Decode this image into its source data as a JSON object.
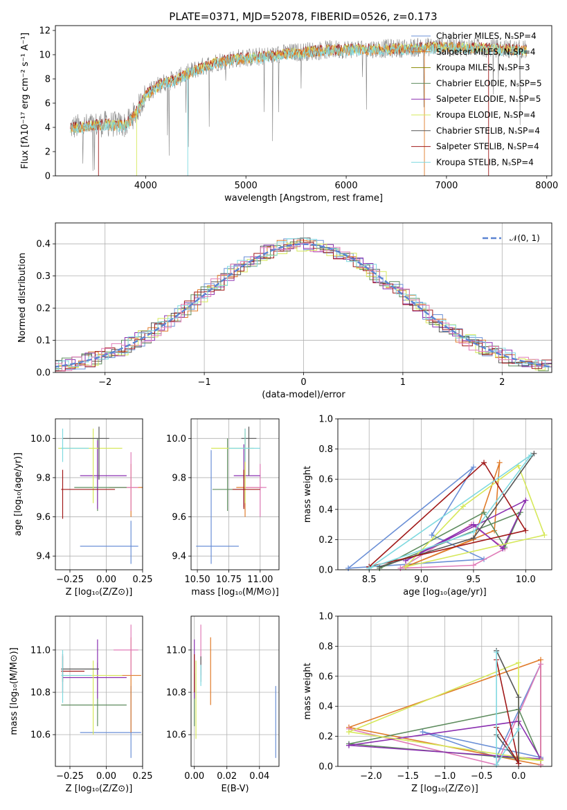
{
  "figure_title": "PLATE=0371, MJD=52078, FIBERID=0526, z=0.173",
  "colors": {
    "chabrier_miles": "#6a8fd6",
    "salpeter_miles": "#e07b2a",
    "kroupa_miles": "#8a8a00",
    "chabrier_elodie": "#5e8c5e",
    "salpeter_elodie": "#8a2fb0",
    "kroupa_elodie": "#d6e85a",
    "chabrier_stelib": "#555555",
    "salpeter_stelib": "#a01818",
    "kroupa_stelib": "#7fd9e0",
    "pink": "#e07cb8",
    "gray_spec": "#808080",
    "normal": "#5b84d2"
  },
  "chart_data": [
    {
      "id": "spectrum",
      "type": "line",
      "xlabel": "wavelength [Angstrom, rest frame]",
      "ylabel": "Flux [fλ10⁻¹⁷ erg cm⁻² s⁻¹ A⁻¹]",
      "xlim": [
        3100,
        8050
      ],
      "ylim": [
        0,
        12.4
      ],
      "xticks": [
        "4000",
        "5000",
        "6000",
        "7000",
        "8000"
      ],
      "yticks": [
        "0",
        "2",
        "4",
        "6",
        "8",
        "10",
        "12"
      ],
      "grid": false,
      "legend_position": "right",
      "legend": [
        "Chabrier MILES, NₛSP=4",
        "Salpeter MILES, NₛSP=4",
        "Kroupa MILES, NₛSP=3",
        "Chabrier ELODIE, NₛSP=5",
        "Salpeter ELODIE, NₛSP=5",
        "Kroupa ELODIE, NₛSP=4",
        "Chabrier STELIB, NₛSP=4",
        "Salpeter STELIB, NₛSP=4",
        "Kroupa STELIB, NₛSP=4"
      ],
      "continuum": {
        "x": [
          3250,
          3400,
          3600,
          3800,
          3900,
          4000,
          4150,
          4300,
          4500,
          4700,
          4900,
          5100,
          5300,
          5500,
          5800,
          6100,
          6400,
          6700,
          7000,
          7300,
          7600,
          7800
        ],
        "y": [
          4.0,
          4.1,
          4.3,
          4.2,
          5.2,
          6.7,
          7.6,
          8.0,
          8.8,
          9.4,
          9.7,
          9.8,
          10.0,
          10.2,
          10.4,
          10.5,
          10.5,
          10.6,
          10.7,
          10.6,
          10.5,
          10.4
        ]
      }
    },
    {
      "id": "residuals",
      "type": "bar",
      "xlabel": "(data-model)/error",
      "ylabel": "Normed distribution",
      "xlim": [
        -2.5,
        2.5
      ],
      "ylim": [
        0,
        0.465
      ],
      "xticks": [
        "−2",
        "−1",
        "0",
        "1",
        "2"
      ],
      "yticks": [
        "0.0",
        "0.1",
        "0.2",
        "0.3",
        "0.4"
      ],
      "grid": true,
      "legend_position": "top-right",
      "legend": [
        "𝒩(0, 1)"
      ],
      "normal_curve": {
        "mean": 0,
        "sigma": 1
      }
    },
    {
      "id": "age-vs-z",
      "type": "scatter",
      "xlabel": "Z [log₁₀(Z/Z⊙)]",
      "ylabel": "age  [log₁₀(age/yr)]",
      "xlim": [
        -0.35,
        0.25
      ],
      "ylim": [
        9.33,
        10.1
      ],
      "xticks": [
        "−0.25",
        "0.00",
        "0.25"
      ],
      "yticks": [
        "9.4",
        "9.6",
        "9.8",
        "10.0"
      ],
      "grid": true,
      "points": [
        {
          "x": 0.17,
          "y": 9.45,
          "xerr": [
            0.35,
            0.05
          ],
          "yerr": [
            0.09,
            0.13
          ],
          "c": "chabrier_miles"
        },
        {
          "x": 0.17,
          "y": 9.75,
          "xerr": [
            0.15,
            0.08
          ],
          "yerr": [
            0.15,
            0.12
          ],
          "c": "salpeter_miles"
        },
        {
          "x": 0.17,
          "y": 9.75,
          "xerr": [
            0.12,
            0.05
          ],
          "yerr": [
            0.12,
            0.18
          ],
          "c": "pink"
        },
        {
          "x": -0.06,
          "y": 9.75,
          "xerr": [
            0.16,
            0.2
          ],
          "yerr": [
            0.12,
            0.25
          ],
          "c": "chabrier_elodie"
        },
        {
          "x": -0.06,
          "y": 9.81,
          "xerr": [
            0.12,
            0.2
          ],
          "yerr": [
            0.17,
            0.18
          ],
          "c": "salpeter_elodie"
        },
        {
          "x": -0.09,
          "y": 9.95,
          "xerr": [
            0.24,
            0.2
          ],
          "yerr": [
            0.28,
            0.1
          ],
          "c": "kroupa_elodie"
        },
        {
          "x": -0.05,
          "y": 10.0,
          "xerr": [
            0.25,
            0.07
          ],
          "yerr": [
            0.21,
            0.06
          ],
          "c": "chabrier_stelib"
        },
        {
          "x": -0.3,
          "y": 9.74,
          "xerr": [
            0.01,
            0.36
          ],
          "yerr": [
            0.15,
            0.1
          ],
          "c": "salpeter_stelib"
        },
        {
          "x": -0.3,
          "y": 9.95,
          "xerr": [
            0.01,
            0.18
          ],
          "yerr": [
            0.07,
            0.1
          ],
          "c": "kroupa_stelib"
        }
      ]
    },
    {
      "id": "age-vs-mass",
      "type": "scatter",
      "xlabel": "mass [log₁₀(M/M⊙)]",
      "ylabel": "",
      "xlim": [
        10.45,
        11.15
      ],
      "ylim": [
        9.33,
        10.1
      ],
      "xticks": [
        "10.50",
        "10.75",
        "11.00"
      ],
      "yticks": [
        "9.4",
        "9.6",
        "9.8",
        "10.0"
      ],
      "grid": true,
      "points": [
        {
          "x": 10.61,
          "y": 9.45,
          "xerr": [
            0.12,
            0.22
          ],
          "yerr": [
            0.09,
            0.49
          ],
          "c": "chabrier_miles"
        },
        {
          "x": 10.88,
          "y": 9.75,
          "xerr": [
            0.07,
            0.13
          ],
          "yerr": [
            0.15,
            0.3
          ],
          "c": "salpeter_miles"
        },
        {
          "x": 11.0,
          "y": 9.75,
          "xerr": [
            0.12,
            0.05
          ],
          "yerr": [
            0.15,
            0.12
          ],
          "c": "pink"
        },
        {
          "x": 10.74,
          "y": 9.74,
          "xerr": [
            0.12,
            0.14
          ],
          "yerr": [
            0.11,
            0.26
          ],
          "c": "chabrier_elodie"
        },
        {
          "x": 10.87,
          "y": 9.81,
          "xerr": [
            0.08,
            0.13
          ],
          "yerr": [
            0.16,
            0.16
          ],
          "c": "salpeter_elodie"
        },
        {
          "x": 10.88,
          "y": 9.95,
          "xerr": [
            0.27,
            0.07
          ],
          "yerr": [
            0.28,
            0.08
          ],
          "c": "kroupa_elodie"
        },
        {
          "x": 10.91,
          "y": 10.0,
          "xerr": [
            0.06,
            0.06
          ],
          "yerr": [
            0.19,
            0.06
          ],
          "c": "chabrier_stelib"
        },
        {
          "x": 10.87,
          "y": 9.74,
          "xerr": [
            0.09,
            0.13
          ],
          "yerr": [
            0.1,
            0.1
          ],
          "c": "salpeter_stelib"
        },
        {
          "x": 10.88,
          "y": 9.95,
          "xerr": [
            0.13,
            0.12
          ],
          "yerr": [
            0.07,
            0.1
          ],
          "c": "kroupa_stelib"
        }
      ]
    },
    {
      "id": "weight-vs-age",
      "type": "line",
      "xlabel": "age  [log₁₀(age/yr)]",
      "ylabel": "mass weight",
      "xlim": [
        8.2,
        10.25
      ],
      "ylim": [
        0,
        1.0
      ],
      "xticks": [
        "8.5",
        "9.0",
        "9.5",
        "10.0"
      ],
      "yticks": [
        "0.0",
        "0.2",
        "0.4",
        "0.6",
        "0.8",
        "1.0"
      ],
      "grid": true,
      "series": [
        {
          "c": "chabrier_miles",
          "x": [
            8.3,
            9.5,
            9.1,
            9.6,
            8.3
          ],
          "y": [
            0.01,
            0.68,
            0.23,
            0.07,
            0.01
          ]
        },
        {
          "c": "salpeter_miles",
          "x": [
            8.85,
            9.5,
            9.75,
            9.7,
            8.85
          ],
          "y": [
            0.02,
            0.2,
            0.71,
            0.26,
            0.02
          ]
        },
        {
          "c": "pink",
          "x": [
            8.8,
            9.5,
            9.8,
            9.48,
            8.8
          ],
          "y": [
            0.01,
            0.03,
            0.14,
            0.3,
            0.01
          ]
        },
        {
          "c": "chabrier_elodie",
          "x": [
            8.6,
            9.6,
            9.8,
            9.95,
            8.6
          ],
          "y": [
            0.01,
            0.38,
            0.15,
            0.38,
            0.01
          ]
        },
        {
          "c": "salpeter_elodie",
          "x": [
            8.85,
            9.5,
            9.78,
            10.0,
            8.85
          ],
          "y": [
            0.06,
            0.3,
            0.14,
            0.46,
            0.06
          ]
        },
        {
          "c": "kroupa_elodie",
          "x": [
            8.85,
            9.4,
            9.93,
            10.18,
            8.85
          ],
          "y": [
            0.02,
            0.42,
            0.69,
            0.23,
            0.02
          ]
        },
        {
          "c": "chabrier_stelib",
          "x": [
            8.6,
            9.5,
            10.08,
            9.5
          ],
          "y": [
            0.02,
            0.21,
            0.77,
            0.21
          ]
        },
        {
          "c": "salpeter_stelib",
          "x": [
            8.5,
            9.6,
            10.0,
            8.5
          ],
          "y": [
            0.02,
            0.71,
            0.26,
            0.02
          ]
        },
        {
          "c": "kroupa_stelib",
          "x": [
            8.5,
            9.5,
            10.05,
            8.5
          ],
          "y": [
            0.01,
            0.25,
            0.76,
            0.01
          ]
        }
      ]
    },
    {
      "id": "mass-vs-z",
      "type": "scatter",
      "xlabel": "Z [log₁₀(Z/Z⊙)]",
      "ylabel": "mass [log₁₀(M/M⊙)]",
      "xlim": [
        -0.35,
        0.25
      ],
      "ylim": [
        10.45,
        11.16
      ],
      "xticks": [
        "−0.25",
        "0.00",
        "0.25"
      ],
      "yticks": [
        "10.6",
        "10.8",
        "11.0"
      ],
      "grid": true,
      "points": [
        {
          "x": 0.17,
          "y": 10.61,
          "xerr": [
            0.35,
            0.07
          ],
          "yerr": [
            0.12,
            0.22
          ],
          "c": "chabrier_miles"
        },
        {
          "x": 0.17,
          "y": 10.88,
          "xerr": [
            0.15,
            0.07
          ],
          "yerr": [
            0.27,
            0.18
          ],
          "c": "salpeter_miles"
        },
        {
          "x": 0.17,
          "y": 11.0,
          "xerr": [
            0.12,
            0.05
          ],
          "yerr": [
            0.12,
            0.12
          ],
          "c": "pink"
        },
        {
          "x": -0.06,
          "y": 10.74,
          "xerr": [
            0.25,
            0.2
          ],
          "yerr": [
            0.1,
            0.2
          ],
          "c": "chabrier_elodie"
        },
        {
          "x": -0.06,
          "y": 10.87,
          "xerr": [
            0.24,
            0.2
          ],
          "yerr": [
            0.1,
            0.18
          ],
          "c": "salpeter_elodie"
        },
        {
          "x": -0.09,
          "y": 10.88,
          "xerr": [
            0.2,
            0.2
          ],
          "yerr": [
            0.28,
            0.07
          ],
          "c": "kroupa_elodie"
        },
        {
          "x": -0.3,
          "y": 10.91,
          "xerr": [
            0.01,
            0.25
          ],
          "yerr": [
            0.06,
            0.06
          ],
          "c": "chabrier_stelib"
        },
        {
          "x": -0.3,
          "y": 10.9,
          "xerr": [
            0.01,
            0.15
          ],
          "yerr": [
            0.1,
            0.08
          ],
          "c": "salpeter_stelib"
        },
        {
          "x": -0.3,
          "y": 10.88,
          "xerr": [
            0.01,
            0.2
          ],
          "yerr": [
            0.13,
            0.12
          ],
          "c": "kroupa_stelib"
        }
      ]
    },
    {
      "id": "mass-vs-ebv",
      "type": "scatter",
      "xlabel": "E(B-V)",
      "ylabel": "",
      "xlim": [
        -0.002,
        0.052
      ],
      "ylim": [
        10.45,
        11.16
      ],
      "xticks": [
        "0.00",
        "0.02",
        "0.04"
      ],
      "yticks": [
        "10.6",
        "10.8",
        "11.0"
      ],
      "grid": true,
      "points": [
        {
          "x": 0.05,
          "y": 10.61,
          "xerr": [
            0,
            0
          ],
          "yerr": [
            0.12,
            0.22
          ],
          "c": "chabrier_miles"
        },
        {
          "x": 0.01,
          "y": 10.88,
          "xerr": [
            0,
            0
          ],
          "yerr": [
            0.14,
            0.18
          ],
          "c": "salpeter_miles"
        },
        {
          "x": 0.004,
          "y": 11.0,
          "xerr": [
            0,
            0
          ],
          "yerr": [
            0.12,
            0.12
          ],
          "c": "pink"
        },
        {
          "x": 0.0,
          "y": 10.74,
          "xerr": [
            0,
            0
          ],
          "yerr": [
            0.1,
            0.15
          ],
          "c": "chabrier_elodie"
        },
        {
          "x": 0.0,
          "y": 10.87,
          "xerr": [
            0,
            0
          ],
          "yerr": [
            0.1,
            0.18
          ],
          "c": "salpeter_elodie"
        },
        {
          "x": 0.001,
          "y": 10.88,
          "xerr": [
            0,
            0
          ],
          "yerr": [
            0.3,
            0.07
          ],
          "c": "kroupa_elodie"
        },
        {
          "x": 0.004,
          "y": 10.91,
          "xerr": [
            0,
            0
          ],
          "yerr": [
            0.06,
            0.06
          ],
          "c": "chabrier_stelib"
        },
        {
          "x": 0.0,
          "y": 10.9,
          "xerr": [
            0,
            0
          ],
          "yerr": [
            0.1,
            0.08
          ],
          "c": "salpeter_stelib"
        },
        {
          "x": 0.004,
          "y": 10.88,
          "xerr": [
            0,
            0
          ],
          "yerr": [
            0.05,
            0.05
          ],
          "c": "kroupa_stelib"
        }
      ]
    },
    {
      "id": "weight-vs-z",
      "type": "line",
      "xlabel": "Z [log₁₀(Z/Z⊙)]",
      "ylabel": "mass weight",
      "xlim": [
        -2.45,
        0.45
      ],
      "ylim": [
        0,
        1.0
      ],
      "xticks": [
        "−2.0",
        "−1.5",
        "−1.0",
        "−0.5",
        "0.0"
      ],
      "yticks": [
        "0.0",
        "0.2",
        "0.4",
        "0.6",
        "0.8",
        "1.0"
      ],
      "grid": true,
      "series": [
        {
          "c": "chabrier_miles",
          "x": [
            -1.3,
            -0.3,
            0.3,
            0.3,
            -1.3
          ],
          "y": [
            0.23,
            0.06,
            0.68,
            0.06,
            0.23
          ]
        },
        {
          "c": "salpeter_miles",
          "x": [
            -2.3,
            0.3,
            0.3,
            -2.3
          ],
          "y": [
            0.26,
            0.71,
            0.01,
            0.26
          ]
        },
        {
          "c": "pink",
          "x": [
            -2.3,
            -0.3,
            0.3,
            0.3
          ],
          "y": [
            0.25,
            0.01,
            0.68,
            0.01
          ]
        },
        {
          "c": "chabrier_elodie",
          "x": [
            -2.3,
            0.0,
            0.3,
            -2.3
          ],
          "y": [
            0.15,
            0.38,
            0.04,
            0.15
          ]
        },
        {
          "c": "salpeter_elodie",
          "x": [
            -2.3,
            0.0,
            0.3,
            -2.3
          ],
          "y": [
            0.14,
            0.3,
            0.05,
            0.14
          ]
        },
        {
          "c": "kroupa_elodie",
          "x": [
            -2.3,
            0.0,
            0.0,
            0.3,
            -2.3
          ],
          "y": [
            0.23,
            0.69,
            0.05,
            0.04,
            0.23
          ]
        },
        {
          "c": "chabrier_stelib",
          "x": [
            -0.3,
            0.0,
            0.0,
            -0.3
          ],
          "y": [
            0.77,
            0.46,
            0.02,
            0.21
          ]
        },
        {
          "c": "salpeter_stelib",
          "x": [
            -0.3,
            0.0,
            -0.3
          ],
          "y": [
            0.26,
            0.02,
            0.71
          ]
        },
        {
          "c": "kroupa_stelib",
          "x": [
            -0.3,
            -0.3,
            0.0
          ],
          "y": [
            0.76,
            0.01,
            0.25
          ]
        }
      ]
    }
  ]
}
